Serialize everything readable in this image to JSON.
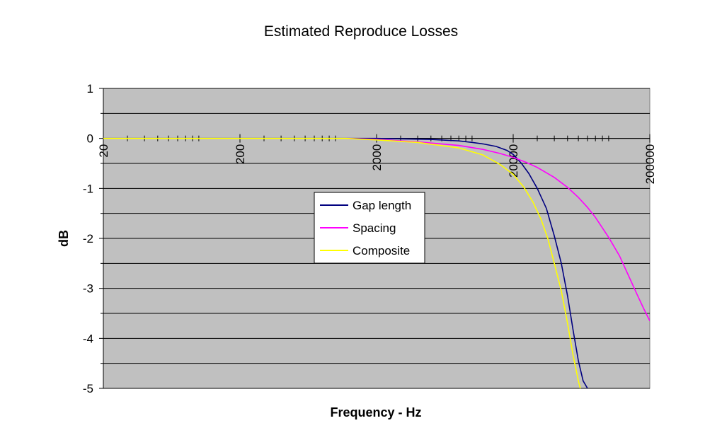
{
  "chart_data": {
    "type": "line",
    "title": "Estimated Reproduce Losses",
    "xlabel": "Frequency - Hz",
    "ylabel": "dB",
    "x_scale": "log",
    "xlim": [
      20,
      200000
    ],
    "ylim": [
      -5,
      1
    ],
    "x_ticks": [
      20,
      200,
      2000,
      20000,
      200000
    ],
    "x_tick_labels": [
      "20",
      "200",
      "2000",
      "20000",
      "200000"
    ],
    "y_ticks": [
      1,
      0,
      -1,
      -2,
      -3,
      -4,
      -5
    ],
    "y_tick_labels": [
      "1",
      "0",
      "-1",
      "-2",
      "-3",
      "-4",
      "-5"
    ],
    "y_minor_ticks": [
      0.5,
      -0.5,
      -1.5,
      -2.5,
      -3.5,
      -4.5
    ],
    "grid": true,
    "plot_background": "#c0c0c0",
    "legend_position": "inside-center-left",
    "series": [
      {
        "name": "Gap length",
        "color": "#000080",
        "x": [
          20,
          200,
          2000,
          5000,
          8000,
          10000,
          12000,
          15000,
          18000,
          20000,
          23000,
          26000,
          30000,
          35000,
          40000,
          45000,
          50000,
          55000,
          60000,
          65000,
          70000
        ],
        "y": [
          0,
          0,
          0,
          -0.02,
          -0.05,
          -0.08,
          -0.11,
          -0.16,
          -0.24,
          -0.32,
          -0.5,
          -0.7,
          -1.0,
          -1.4,
          -1.95,
          -2.5,
          -3.15,
          -3.85,
          -4.45,
          -4.85,
          -5
        ]
      },
      {
        "name": "Spacing",
        "color": "#ff00ff",
        "x": [
          1200,
          2000,
          4000,
          8000,
          12000,
          16000,
          20000,
          25000,
          30000,
          40000,
          50000,
          60000,
          70000,
          80000,
          100000,
          120000,
          140000,
          160000,
          180000,
          200000
        ],
        "y": [
          0,
          -0.02,
          -0.07,
          -0.14,
          -0.22,
          -0.3,
          -0.38,
          -0.48,
          -0.58,
          -0.78,
          -0.98,
          -1.18,
          -1.38,
          -1.58,
          -1.98,
          -2.35,
          -2.75,
          -3.1,
          -3.4,
          -3.65
        ]
      },
      {
        "name": "Composite",
        "color": "#ffff00",
        "x": [
          20,
          200,
          1200,
          2000,
          4000,
          8000,
          12000,
          16000,
          20000,
          24000,
          28000,
          32000,
          36000,
          40000,
          45000,
          50000,
          55000,
          60000,
          62000
        ],
        "y": [
          0,
          0,
          0,
          -0.03,
          -0.08,
          -0.19,
          -0.33,
          -0.52,
          -0.72,
          -0.98,
          -1.28,
          -1.62,
          -2.02,
          -2.5,
          -3.05,
          -3.7,
          -4.35,
          -4.85,
          -5
        ]
      }
    ]
  }
}
